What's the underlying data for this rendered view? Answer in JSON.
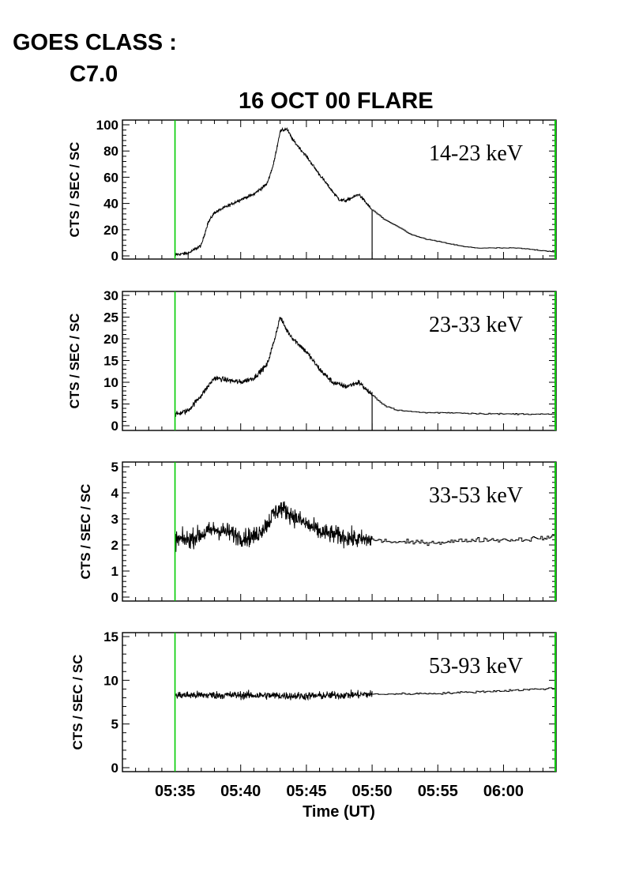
{
  "header": {
    "goes_label": "GOES CLASS :",
    "goes_class": "C7.0"
  },
  "chart_data": {
    "type": "line",
    "title": "16 OCT 00 FLARE",
    "xlabel": "Time (UT)",
    "x_ticks": [
      "05:35",
      "05:40",
      "05:45",
      "05:50",
      "05:55",
      "06:00"
    ],
    "xlim": [
      "05:31",
      "06:04"
    ],
    "line_color": "#000000",
    "marker_color": "#00cc00",
    "green_markers_x": [
      "05:35",
      "06:04"
    ],
    "black_marker_x": "05:50",
    "panels": [
      {
        "band": "14-23 keV",
        "ylabel": "CTS / SEC / SC",
        "ylim": [
          0,
          100
        ],
        "y_ticks": [
          0,
          20,
          40,
          60,
          80,
          100
        ],
        "noise": 1.2,
        "series": {
          "x": [
            "05:35",
            "05:36",
            "05:37",
            "05:37:30",
            "05:38",
            "05:39",
            "05:40",
            "05:41",
            "05:42",
            "05:42:30",
            "05:43",
            "05:43:30",
            "05:44",
            "05:45",
            "05:46",
            "05:47",
            "05:47:30",
            "05:48",
            "05:49",
            "05:50",
            "05:51",
            "05:52",
            "05:53",
            "05:54",
            "05:55",
            "05:56",
            "05:57",
            "05:58",
            "05:59",
            "06:00",
            "06:01",
            "06:02",
            "06:03",
            "06:04"
          ],
          "y": [
            1,
            2,
            8,
            25,
            33,
            38,
            43,
            47,
            55,
            70,
            95,
            97,
            88,
            76,
            62,
            49,
            43,
            42,
            47,
            35,
            27,
            22,
            16,
            13,
            11,
            9,
            7,
            6,
            6,
            6,
            6,
            5,
            4,
            3
          ]
        }
      },
      {
        "band": "23-33 keV",
        "ylabel": "CTS / SEC / SC",
        "ylim": [
          0,
          30
        ],
        "y_ticks": [
          0,
          5,
          10,
          15,
          20,
          25,
          30
        ],
        "noise": 0.6,
        "series": {
          "x": [
            "05:35",
            "05:36",
            "05:37",
            "05:38",
            "05:39",
            "05:40",
            "05:41",
            "05:42",
            "05:42:30",
            "05:43",
            "05:43:30",
            "05:44",
            "05:45",
            "05:46",
            "05:47",
            "05:48",
            "05:49",
            "05:50",
            "05:51",
            "05:52",
            "05:54",
            "05:56",
            "05:58",
            "06:00",
            "06:02",
            "06:04"
          ],
          "y": [
            2.5,
            3.5,
            7,
            11,
            10.5,
            10,
            11,
            14,
            19,
            25,
            22,
            20,
            17,
            13,
            10,
            9,
            10,
            7,
            4.5,
            3.5,
            3,
            3,
            2.8,
            2.7,
            2.7,
            2.6
          ]
        }
      },
      {
        "band": "33-53 keV",
        "ylabel": "CTS / SEC / SC",
        "ylim": [
          0,
          5
        ],
        "y_ticks": [
          0,
          1,
          2,
          3,
          4,
          5
        ],
        "noise": 0.35,
        "series": {
          "x": [
            "05:35",
            "05:36",
            "05:37",
            "05:38",
            "05:39",
            "05:40",
            "05:41",
            "05:42",
            "05:42:30",
            "05:43",
            "05:43:30",
            "05:44",
            "05:45",
            "05:46",
            "05:47",
            "05:48",
            "05:49",
            "05:50",
            "05:52",
            "05:55",
            "05:58",
            "06:01",
            "06:04"
          ],
          "y": [
            2.2,
            2.2,
            2.4,
            2.6,
            2.5,
            2.3,
            2.3,
            2.8,
            3.2,
            3.4,
            3.3,
            3.1,
            2.8,
            2.5,
            2.4,
            2.3,
            2.2,
            2.2,
            2.1,
            2.1,
            2.2,
            2.2,
            2.3
          ]
        }
      },
      {
        "band": "53-93 keV",
        "ylabel": "CTS / SEC / SC",
        "ylim": [
          0,
          15
        ],
        "y_ticks": [
          0,
          5,
          10,
          15
        ],
        "noise": 0.45,
        "series": {
          "x": [
            "05:35",
            "05:40",
            "05:45",
            "05:50",
            "05:55",
            "06:00",
            "06:04"
          ],
          "y": [
            8.3,
            8.3,
            8.2,
            8.4,
            8.5,
            8.8,
            9.1
          ]
        }
      }
    ]
  }
}
